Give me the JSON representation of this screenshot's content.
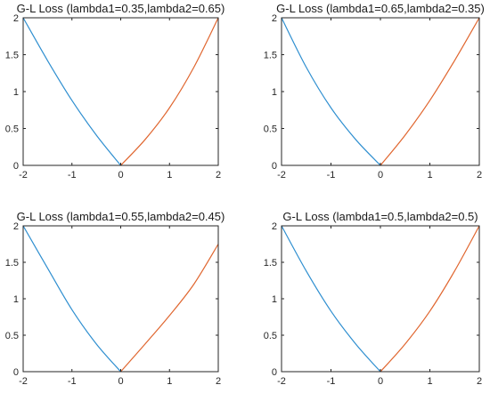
{
  "chart_data": [
    {
      "type": "line",
      "title": "G-L Loss (lambda1=0.35,lambda2=0.65)",
      "xlim": [
        -2,
        2
      ],
      "ylim": [
        0,
        2
      ],
      "xticks": [
        "-2",
        "-1",
        "0",
        "1",
        "2"
      ],
      "yticks": [
        "0",
        "0.5",
        "1",
        "1.5",
        "2"
      ],
      "grid": false,
      "series": [
        {
          "color": "#2f8fd0",
          "x": [
            -2,
            -1.5,
            -1,
            -0.5,
            0
          ],
          "y": [
            2,
            1.42,
            0.88,
            0.41,
            0
          ]
        },
        {
          "color": "#e0662f",
          "x": [
            0,
            0.5,
            1,
            1.5,
            2
          ],
          "y": [
            0,
            0.35,
            0.78,
            1.33,
            2
          ]
        }
      ]
    },
    {
      "type": "line",
      "title": "G-L Loss (lambda1=0.65,lambda2=0.35)",
      "xlim": [
        -2,
        2
      ],
      "ylim": [
        0,
        2
      ],
      "xticks": [
        "-2",
        "-1",
        "0",
        "1",
        "2"
      ],
      "yticks": [
        "0",
        "0.5",
        "1",
        "1.5",
        "2"
      ],
      "grid": false,
      "series": [
        {
          "color": "#2f8fd0",
          "x": [
            -2,
            -1.5,
            -1,
            -0.5,
            0
          ],
          "y": [
            2,
            1.33,
            0.78,
            0.35,
            0
          ]
        },
        {
          "color": "#e0662f",
          "x": [
            0,
            0.5,
            1,
            1.5,
            2
          ],
          "y": [
            0,
            0.41,
            0.88,
            1.42,
            2
          ]
        }
      ]
    },
    {
      "type": "line",
      "title": "G-L Loss (lambda1=0.55,lambda2=0.45)",
      "xlim": [
        -2,
        2
      ],
      "ylim": [
        0,
        2
      ],
      "xticks": [
        "-2",
        "-1",
        "0",
        "1",
        "2"
      ],
      "yticks": [
        "0",
        "0.5",
        "1",
        "1.5",
        "2"
      ],
      "grid": false,
      "series": [
        {
          "color": "#2f8fd0",
          "x": [
            -2,
            -1.5,
            -1,
            -0.5,
            0
          ],
          "y": [
            2,
            1.42,
            0.85,
            0.38,
            0
          ]
        },
        {
          "color": "#e0662f",
          "x": [
            0,
            0.5,
            1,
            1.5,
            2
          ],
          "y": [
            0,
            0.38,
            0.77,
            1.2,
            1.75
          ]
        }
      ]
    },
    {
      "type": "line",
      "title": "G-L Loss (lambda1=0.5,lambda2=0.5)",
      "xlim": [
        -2,
        2
      ],
      "ylim": [
        0,
        2
      ],
      "xticks": [
        "-2",
        "-1",
        "0",
        "1",
        "2"
      ],
      "yticks": [
        "0",
        "0.5",
        "1",
        "1.5",
        "2"
      ],
      "grid": false,
      "series": [
        {
          "color": "#2f8fd0",
          "x": [
            -2,
            -1.5,
            -1,
            -0.5,
            0
          ],
          "y": [
            2,
            1.38,
            0.83,
            0.38,
            0
          ]
        },
        {
          "color": "#e0662f",
          "x": [
            0,
            0.5,
            1,
            1.5,
            2
          ],
          "y": [
            0,
            0.38,
            0.83,
            1.38,
            2
          ]
        }
      ]
    }
  ]
}
